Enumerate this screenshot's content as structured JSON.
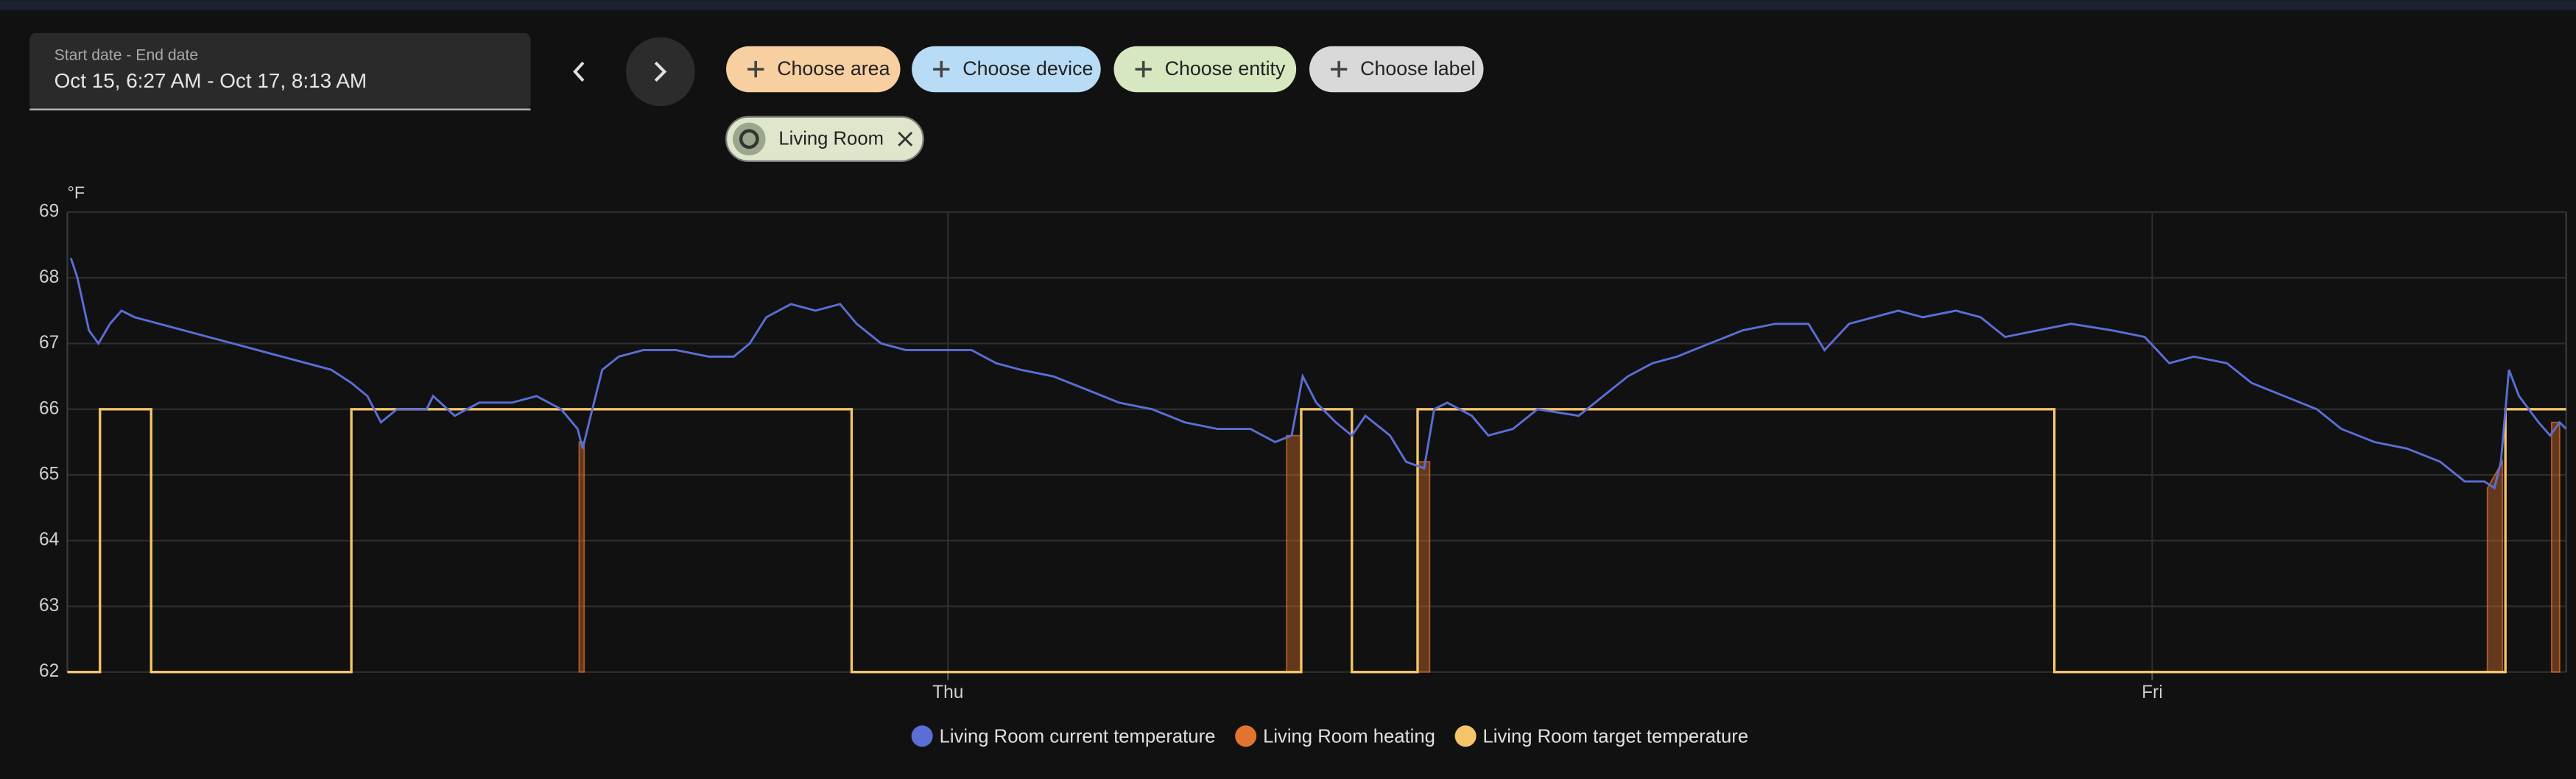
{
  "date_picker": {
    "label": "Start date - End date",
    "value": "Oct 15, 6:27 AM - Oct 17, 8:13 AM"
  },
  "filters": [
    "Choose area",
    "Choose device",
    "Choose entity",
    "Choose label"
  ],
  "selected": [
    "Living Room"
  ],
  "chart_data": {
    "type": "line",
    "y_unit": "°F",
    "xlim": [
      0,
      49.8
    ],
    "xticks": [
      {
        "value": 17.55,
        "label": "Thu"
      },
      {
        "value": 41.55,
        "label": "Fri"
      }
    ],
    "ylim": [
      62,
      69
    ],
    "yticks": [
      62,
      63,
      64,
      65,
      66,
      67,
      68,
      69
    ],
    "grid": true,
    "legend": "bottom",
    "series": [
      {
        "name": "Living Room current temperature",
        "color": "#5b6ed6",
        "kind": "line",
        "x": [
          0.07,
          0.2,
          0.43,
          0.62,
          0.85,
          1.08,
          1.34,
          1.83,
          2.32,
          2.81,
          3.3,
          3.79,
          4.28,
          4.77,
          5.26,
          5.66,
          5.98,
          6.25,
          6.57,
          7.16,
          7.29,
          7.72,
          8.21,
          8.86,
          9.35,
          9.84,
          10.17,
          10.27,
          10.43,
          10.66,
          10.99,
          11.48,
          12.13,
          12.79,
          13.28,
          13.6,
          13.93,
          14.42,
          14.91,
          15.4,
          15.73,
          16.22,
          16.71,
          17.36,
          18.02,
          18.51,
          19.0,
          19.65,
          20.31,
          20.96,
          21.62,
          22.27,
          22.92,
          23.58,
          24.07,
          24.4,
          24.62,
          24.89,
          25.28,
          25.6,
          25.87,
          26.36,
          26.68,
          27.04,
          27.24,
          27.5,
          27.99,
          28.32,
          28.81,
          29.3,
          30.12,
          30.61,
          31.1,
          31.59,
          32.08,
          32.73,
          33.39,
          34.04,
          34.7,
          35.02,
          35.51,
          36.0,
          36.49,
          36.98,
          37.64,
          38.13,
          38.62,
          39.27,
          39.93,
          40.75,
          41.4,
          41.89,
          42.38,
          43.04,
          43.53,
          44.18,
          44.83,
          45.32,
          45.98,
          46.63,
          47.29,
          47.78,
          48.17,
          48.37,
          48.5,
          48.66,
          48.86,
          49.25,
          49.48,
          49.67,
          49.8
        ],
        "values": [
          68.3,
          68.0,
          67.2,
          67.0,
          67.3,
          67.5,
          67.4,
          67.3,
          67.2,
          67.1,
          67.0,
          66.9,
          66.8,
          66.7,
          66.6,
          66.4,
          66.2,
          65.8,
          66.0,
          66.0,
          66.2,
          65.9,
          66.1,
          66.1,
          66.2,
          66.0,
          65.7,
          65.4,
          65.9,
          66.6,
          66.8,
          66.9,
          66.9,
          66.8,
          66.8,
          67.0,
          67.4,
          67.6,
          67.5,
          67.6,
          67.3,
          67.0,
          66.9,
          66.9,
          66.9,
          66.7,
          66.6,
          66.5,
          66.3,
          66.1,
          66.0,
          65.8,
          65.7,
          65.7,
          65.5,
          65.6,
          66.5,
          66.1,
          65.8,
          65.6,
          65.9,
          65.6,
          65.2,
          65.1,
          66.0,
          66.1,
          65.9,
          65.6,
          65.7,
          66.0,
          65.9,
          66.2,
          66.5,
          66.7,
          66.8,
          67.0,
          67.2,
          67.3,
          67.3,
          66.9,
          67.3,
          67.4,
          67.5,
          67.4,
          67.5,
          67.4,
          67.1,
          67.2,
          67.3,
          67.2,
          67.1,
          66.7,
          66.8,
          66.7,
          66.4,
          66.2,
          66.0,
          65.7,
          65.5,
          65.4,
          65.2,
          64.9,
          64.9,
          64.8,
          65.2,
          66.6,
          66.2,
          65.8,
          65.6,
          65.8,
          65.7
        ]
      },
      {
        "name": "Living Room heating",
        "color": "#e2742f",
        "kind": "area",
        "x": [
          10.2,
          10.3,
          null,
          24.3,
          24.6,
          null,
          26.9,
          27.15,
          null,
          48.23,
          48.53,
          null,
          49.51,
          49.67
        ],
        "values": [
          65.5,
          65.5,
          null,
          65.6,
          65.6,
          null,
          65.2,
          65.2,
          null,
          64.8,
          65.2,
          null,
          65.8,
          65.8
        ]
      },
      {
        "name": "Living Room target temperature",
        "color": "#f4c46a",
        "kind": "step",
        "x": [
          0,
          0.65,
          1.67,
          5.66,
          15.63,
          24.59,
          25.6,
          26.91,
          39.6,
          48.59,
          49.8
        ],
        "values": [
          62,
          66,
          62,
          66,
          62,
          66,
          62,
          66,
          62,
          66,
          66
        ]
      }
    ]
  }
}
